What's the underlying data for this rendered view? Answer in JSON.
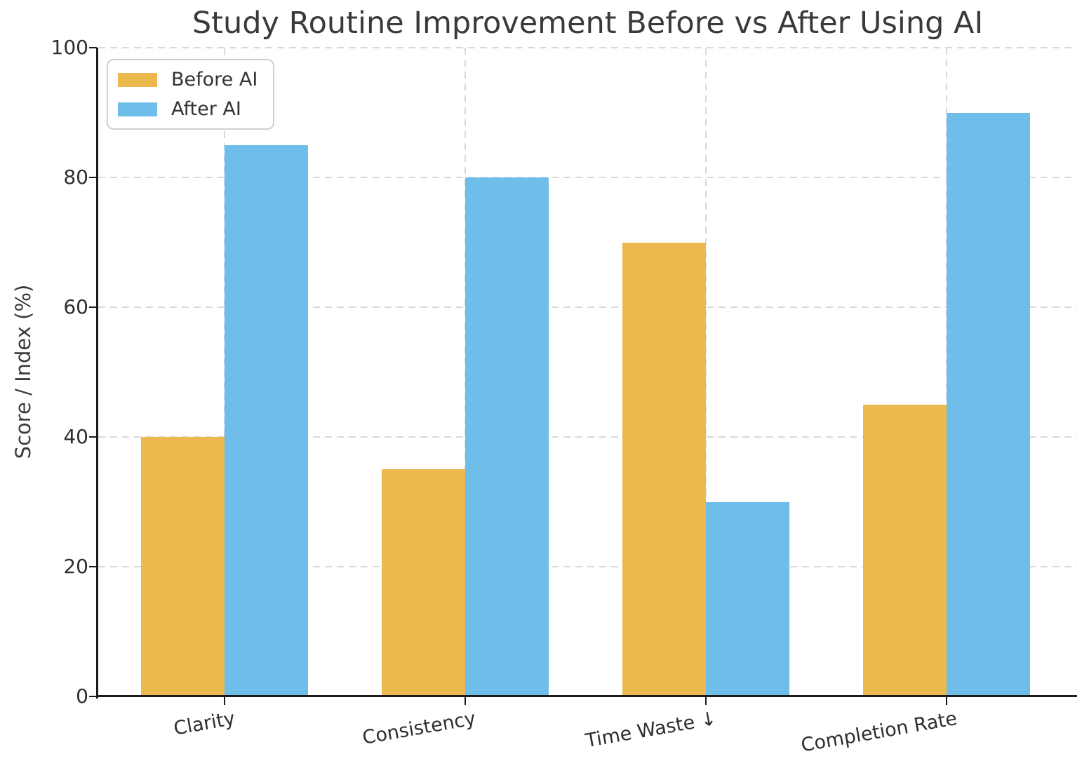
{
  "chart_data": {
    "type": "bar",
    "title": "Study Routine Improvement Before vs After Using AI",
    "categories": [
      "Clarity",
      "Consistency",
      "Time Waste ↓",
      "Completion Rate"
    ],
    "series": [
      {
        "name": "Before AI",
        "color": "#ECB94E",
        "values": [
          40,
          35,
          70,
          45
        ]
      },
      {
        "name": "After AI",
        "color": "#6FBEE9",
        "values": [
          85,
          80,
          30,
          90
        ]
      }
    ],
    "xlabel": "",
    "ylabel": "Score / Index (%)",
    "ylim": [
      0,
      100
    ],
    "yticks": [
      0,
      20,
      40,
      60,
      80,
      100
    ],
    "grid": true,
    "grid_style": "dashed",
    "legend_position": "upper-left",
    "colors": {
      "text": "#3A3A3A",
      "tick_text": "#2E2E2E",
      "grid": "#D9D9D9",
      "spine": "#1C1C1C",
      "background": "#FFFFFF"
    }
  }
}
